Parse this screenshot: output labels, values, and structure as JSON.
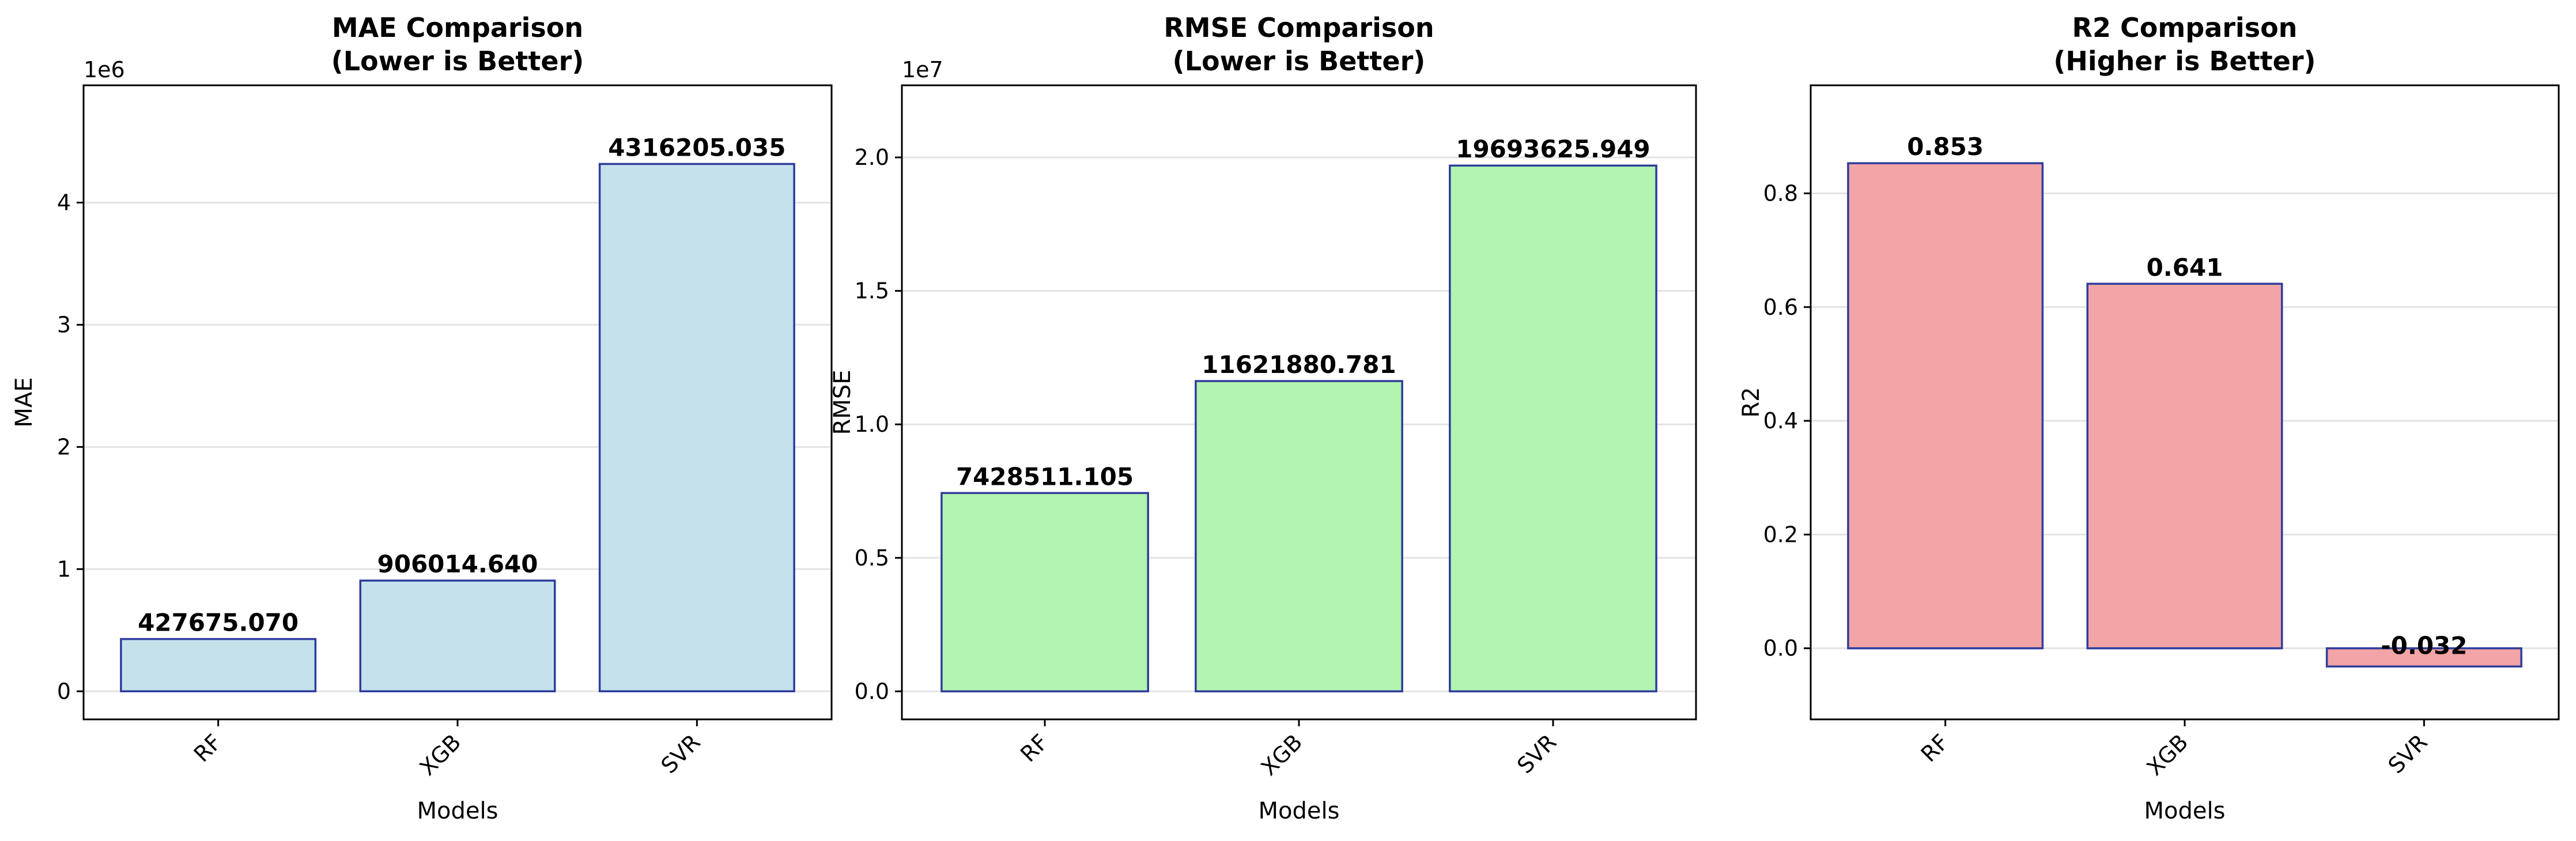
{
  "chart_data": [
    {
      "type": "bar",
      "title_line1": "MAE Comparison",
      "title_line2": "(Lower is Better)",
      "xlabel": "Models",
      "ylabel": "MAE",
      "categories": [
        "RF",
        "XGB",
        "SVR"
      ],
      "values": [
        427675.07,
        906014.64,
        4316205.035
      ],
      "value_labels": [
        "427675.070",
        "906014.640",
        "4316205.035"
      ],
      "ylim": [
        -230000,
        4960000
      ],
      "y_scale_note": "1e6",
      "yticks": [
        0,
        1000000,
        2000000,
        3000000,
        4000000
      ],
      "ytick_labels": [
        "0",
        "1",
        "2",
        "3",
        "4"
      ],
      "bar_color": "#c5e2ec",
      "edge_color": "#2e3d9c",
      "grid": "y"
    },
    {
      "type": "bar",
      "title_line1": "RMSE Comparison",
      "title_line2": "(Lower is Better)",
      "xlabel": "Models",
      "ylabel": "RMSE",
      "categories": [
        "RF",
        "XGB",
        "SVR"
      ],
      "values": [
        7428511.105,
        11621880.781,
        19693625.949
      ],
      "value_labels": [
        "7428511.105",
        "11621880.781",
        "19693625.949"
      ],
      "ylim": [
        -1050000,
        22700000
      ],
      "y_scale_note": "1e7",
      "yticks": [
        0,
        5000000,
        10000000,
        15000000,
        20000000
      ],
      "ytick_labels": [
        "0.0",
        "0.5",
        "1.0",
        "1.5",
        "2.0"
      ],
      "bar_color": "#b2f4b0",
      "edge_color": "#2e3d9c",
      "grid": "y"
    },
    {
      "type": "bar",
      "title_line1": "R2 Comparison",
      "title_line2": "(Higher is Better)",
      "xlabel": "Models",
      "ylabel": "R2",
      "categories": [
        "RF",
        "XGB",
        "SVR"
      ],
      "values": [
        0.853,
        0.641,
        -0.032
      ],
      "value_labels": [
        "0.853",
        "0.641",
        "-0.032"
      ],
      "ylim": [
        -0.125,
        0.99
      ],
      "y_scale_note": "",
      "yticks": [
        0,
        0.2,
        0.4,
        0.6,
        0.8
      ],
      "ytick_labels": [
        "0.0",
        "0.2",
        "0.4",
        "0.6",
        "0.8"
      ],
      "bar_color": "#f2a4a6",
      "edge_color": "#2e3d9c",
      "grid": "y"
    }
  ]
}
